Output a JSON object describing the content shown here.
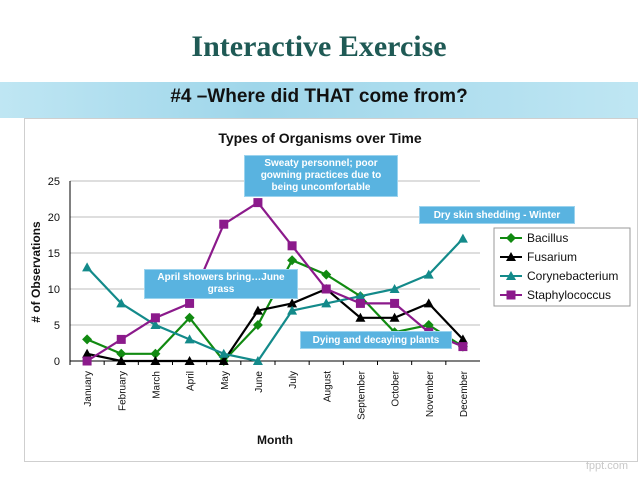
{
  "slide": {
    "title": "Interactive Exercise",
    "subtitle": "#4 –Where did THAT come from?",
    "logo_text": "fppt.com"
  },
  "callouts": {
    "sweaty": "Sweaty personnel; poor gowning practices due to being uncomfortable",
    "dry_skin": "Dry skin shedding - Winter",
    "april": "April showers bring…June grass",
    "dying": "Dying and decaying plants"
  },
  "chart_data": {
    "type": "line",
    "title": "Types of Organisms over Time",
    "xlabel": "Month",
    "ylabel": "# of Observations",
    "ylim": [
      0,
      25
    ],
    "yticks": [
      0,
      5,
      10,
      15,
      20,
      25
    ],
    "grid": true,
    "legend_position": "right",
    "categories": [
      "January",
      "February",
      "March",
      "April",
      "May",
      "June",
      "July",
      "August",
      "September",
      "October",
      "November",
      "December"
    ],
    "series": [
      {
        "name": "Bacillus",
        "color": "#118a11",
        "marker": "diamond",
        "values": [
          3,
          1,
          1,
          6,
          0,
          5,
          14,
          12,
          9,
          4,
          5,
          2
        ]
      },
      {
        "name": "Fusarium",
        "color": "#000000",
        "marker": "triangle",
        "values": [
          1,
          0,
          0,
          0,
          0,
          7,
          8,
          10,
          6,
          6,
          8,
          3
        ]
      },
      {
        "name": "Corynebacterium",
        "color": "#138a8a",
        "marker": "triangle",
        "values": [
          13,
          8,
          5,
          3,
          1,
          0,
          7,
          8,
          9,
          10,
          12,
          17
        ]
      },
      {
        "name": "Staphylococcus",
        "color": "#8b1a8b",
        "marker": "square",
        "values": [
          0,
          3,
          6,
          8,
          19,
          22,
          16,
          10,
          8,
          8,
          4,
          2
        ]
      }
    ]
  }
}
